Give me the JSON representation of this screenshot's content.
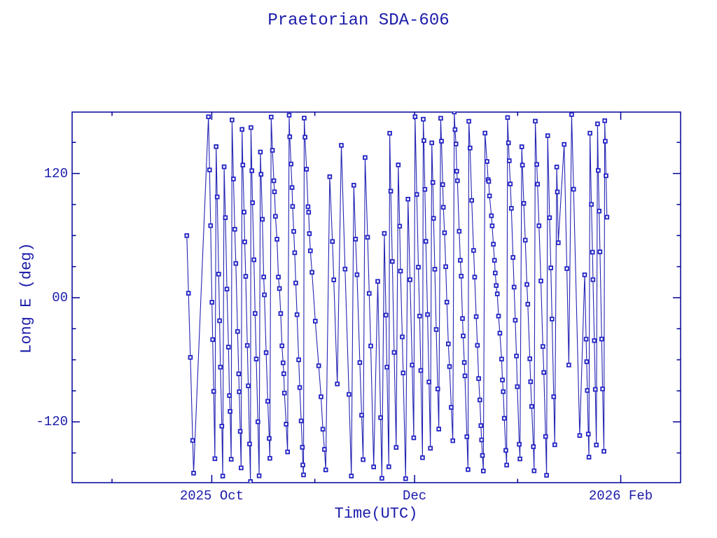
{
  "page": {
    "background": "#ffffff"
  },
  "chart_data": {
    "type": "line",
    "title": "Praetorian SDA-606",
    "xlabel": "Time(UTC)",
    "ylabel": "Long E (deg)",
    "grid": false,
    "legend": null,
    "x_axis": {
      "span_days": 183,
      "ticks": [
        {
          "day": 12,
          "major": false,
          "label": ""
        },
        {
          "day": 42,
          "major": true,
          "label": "2025 Oct"
        },
        {
          "day": 73,
          "major": false,
          "label": ""
        },
        {
          "day": 103,
          "major": true,
          "label": "Dec"
        },
        {
          "day": 134,
          "major": false,
          "label": ""
        },
        {
          "day": 165,
          "major": true,
          "label": "2026 Feb"
        }
      ]
    },
    "y_axis": {
      "min": -178.7,
      "max": 179.3,
      "major_ticks": [
        {
          "value": 120,
          "label": "120"
        },
        {
          "value": 0,
          "label": "00"
        },
        {
          "value": -120,
          "label": "-120"
        }
      ],
      "minor_ticks": [
        -150,
        -90,
        -60,
        -30,
        30,
        60,
        90,
        150
      ]
    },
    "series": [
      {
        "name": "east-longitude-track",
        "marker": "open-square",
        "wrap_degrees": 360,
        "generator": {
          "seed": 11,
          "start_day": 34.5,
          "end_day": 161,
          "start_lon": 60,
          "segments": [
            {
              "from": 34.5,
              "to": 36.5,
              "dt": 0.5
            },
            {
              "from": 36.5,
              "to": 40.5,
              "dt": 4.0
            },
            {
              "from": 40.5,
              "to": 72.0,
              "dt": 0.34
            },
            {
              "from": 72.0,
              "to": 92.0,
              "dt": 0.8
            },
            {
              "from": 92.0,
              "to": 103.0,
              "dt": 0.5
            },
            {
              "from": 103.0,
              "to": 146.0,
              "dt": 0.4
            },
            {
              "from": 146.0,
              "to": 153.5,
              "dt": 1.3
            },
            {
              "from": 153.5,
              "to": 161.0,
              "dt": 0.33
            }
          ],
          "drift_deg_per_day": {
            "base": 105,
            "amp1": 45,
            "period1": 55,
            "phase1": 30,
            "amp2": 20,
            "period2": 13
          },
          "jitter_deg": 5
        }
      }
    ],
    "style": {
      "axis_color": "#000096",
      "text_color": "#1b1baa",
      "line_color": "#2424b4",
      "marker_color": "#2222c4",
      "marker_size": 4.8,
      "line_width": 1.1,
      "frame_width": 1.5,
      "major_tick_len": 11,
      "minor_tick_len": 5.5
    }
  }
}
